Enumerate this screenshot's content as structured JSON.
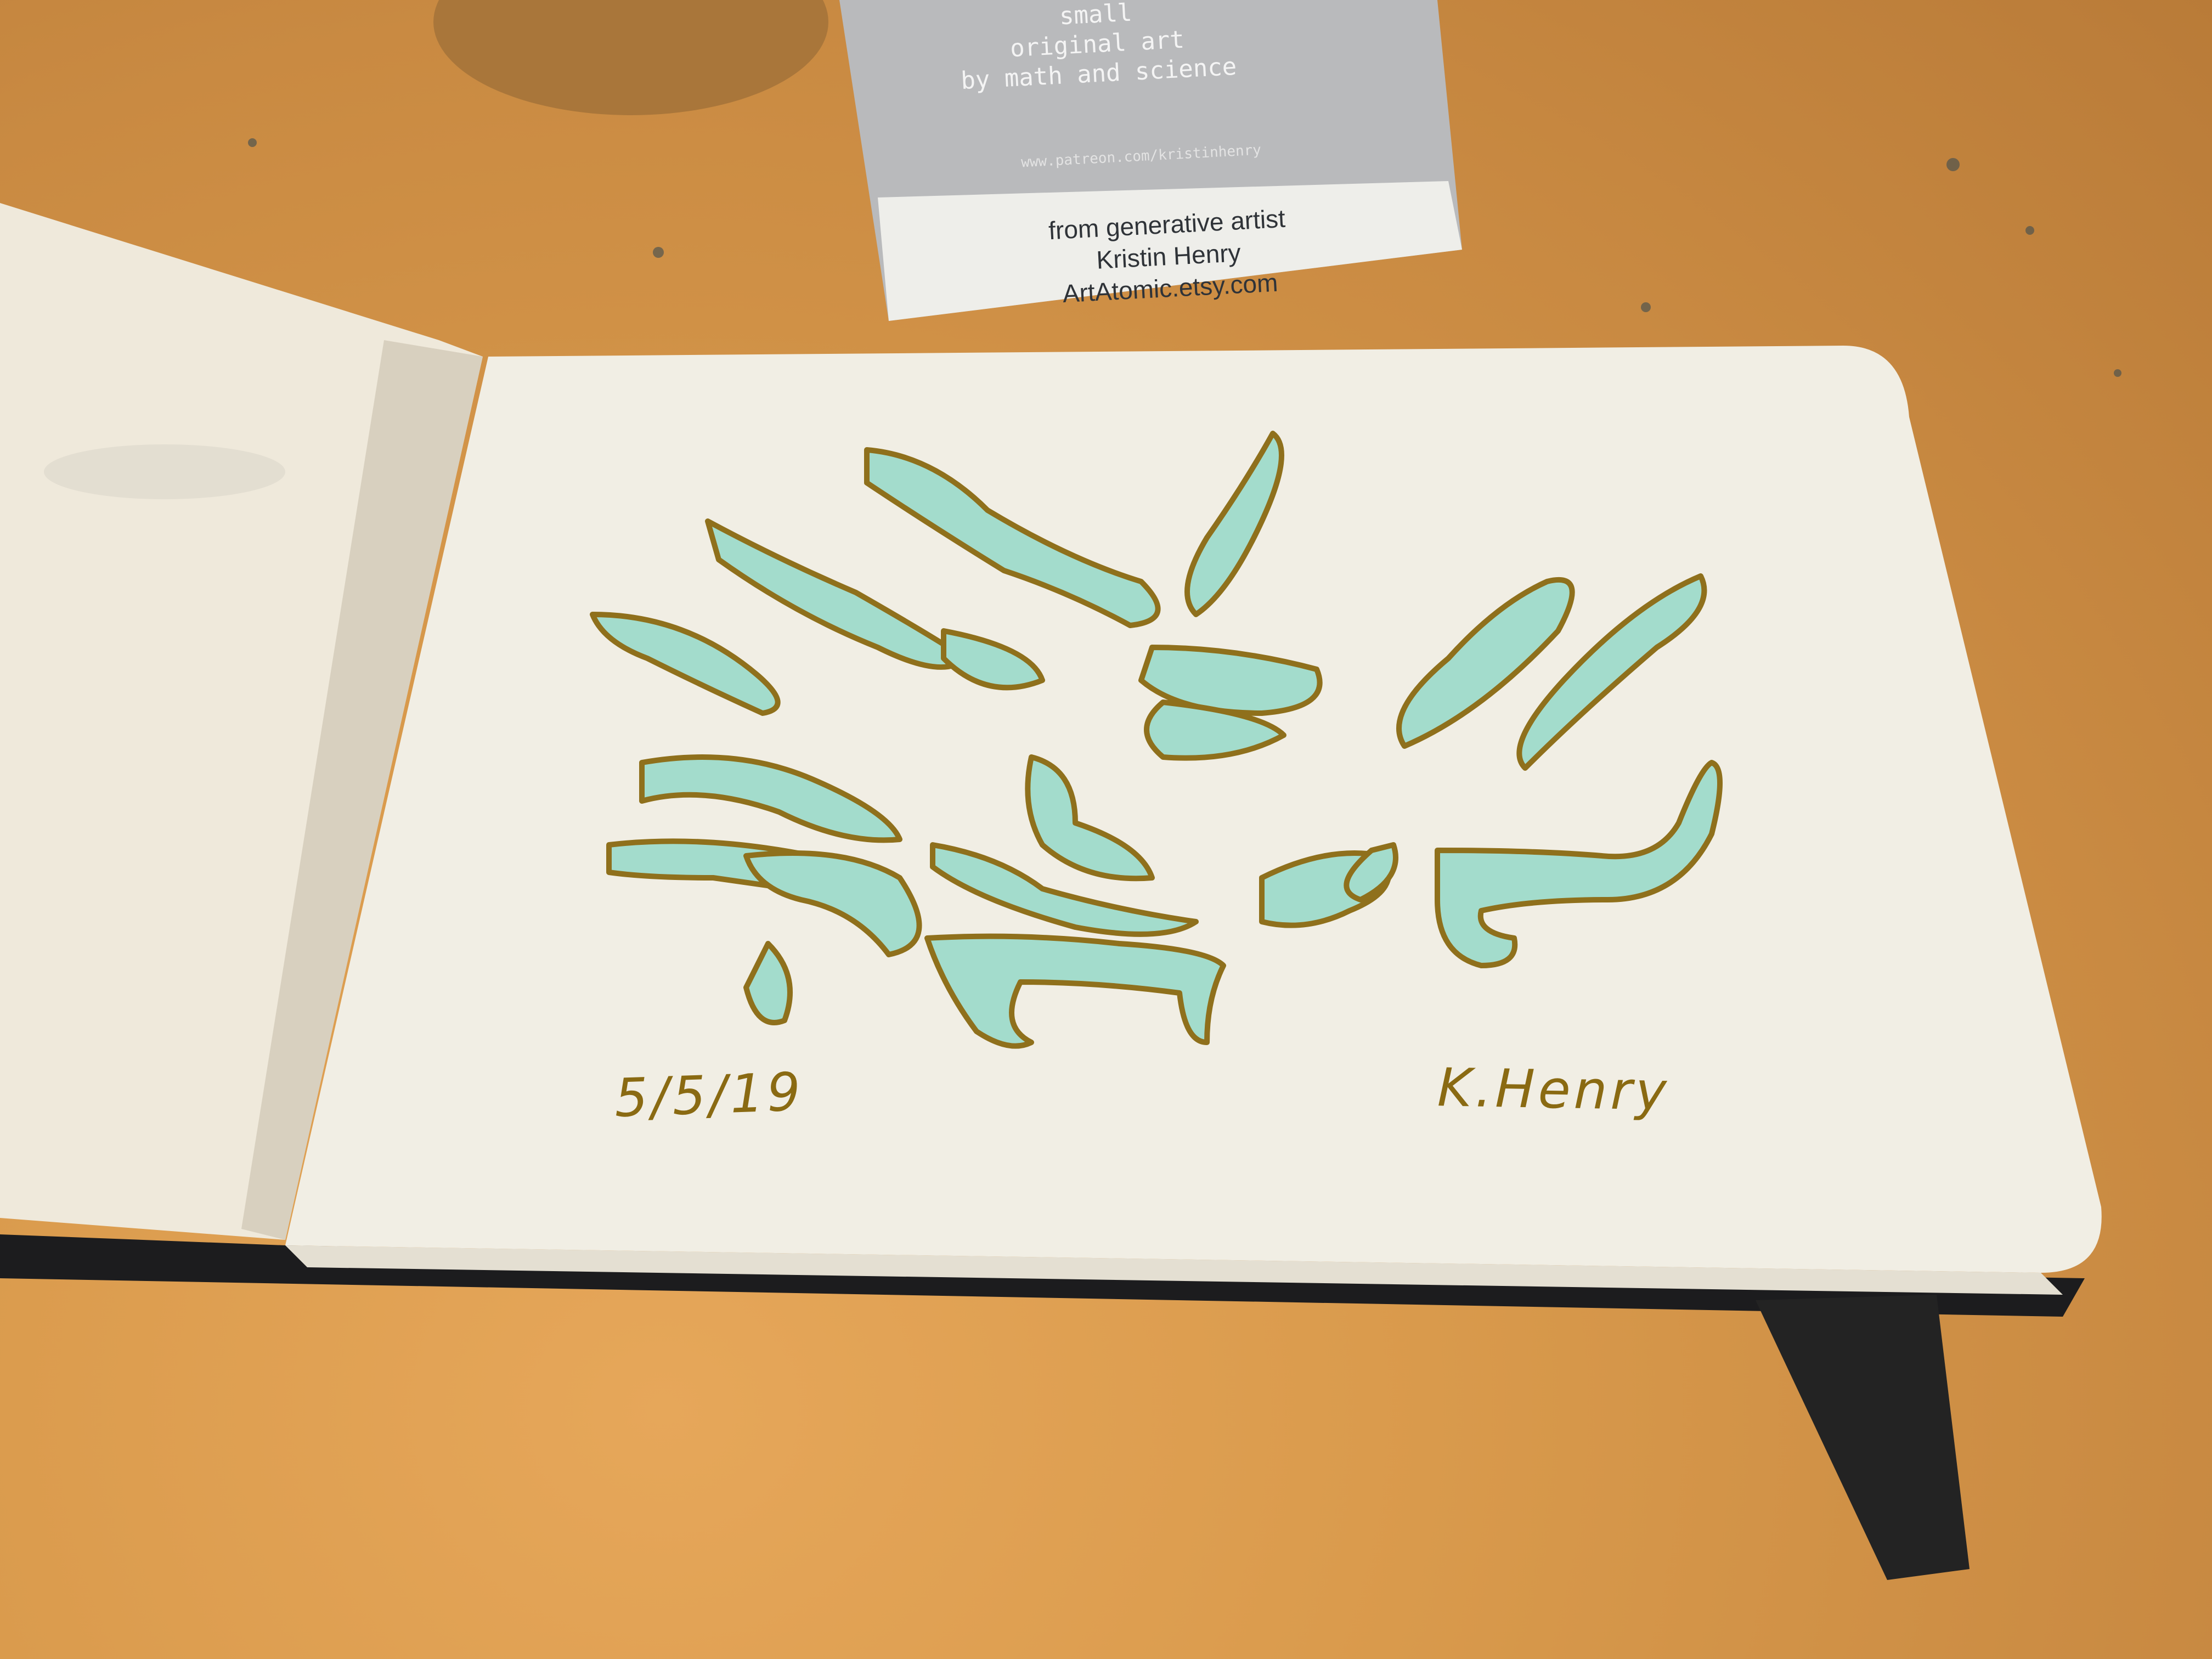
{
  "card": {
    "top_lines": [
      "small",
      "original art",
      "by math and science"
    ],
    "url": "www.patreon.com/kristinhenry",
    "lines": [
      "from generative artist",
      "Kristin Henry",
      "ArtAtomic.etsy.com"
    ]
  },
  "sketchbook": {
    "date": "5/5/19",
    "signature": "K.Henry"
  },
  "colors": {
    "table": "#d99a4c",
    "paper": "#f1eee4",
    "ink_outline": "#8a6a12",
    "ink_fill": "#8fd6c4",
    "book_cover": "#1c1c1e"
  }
}
